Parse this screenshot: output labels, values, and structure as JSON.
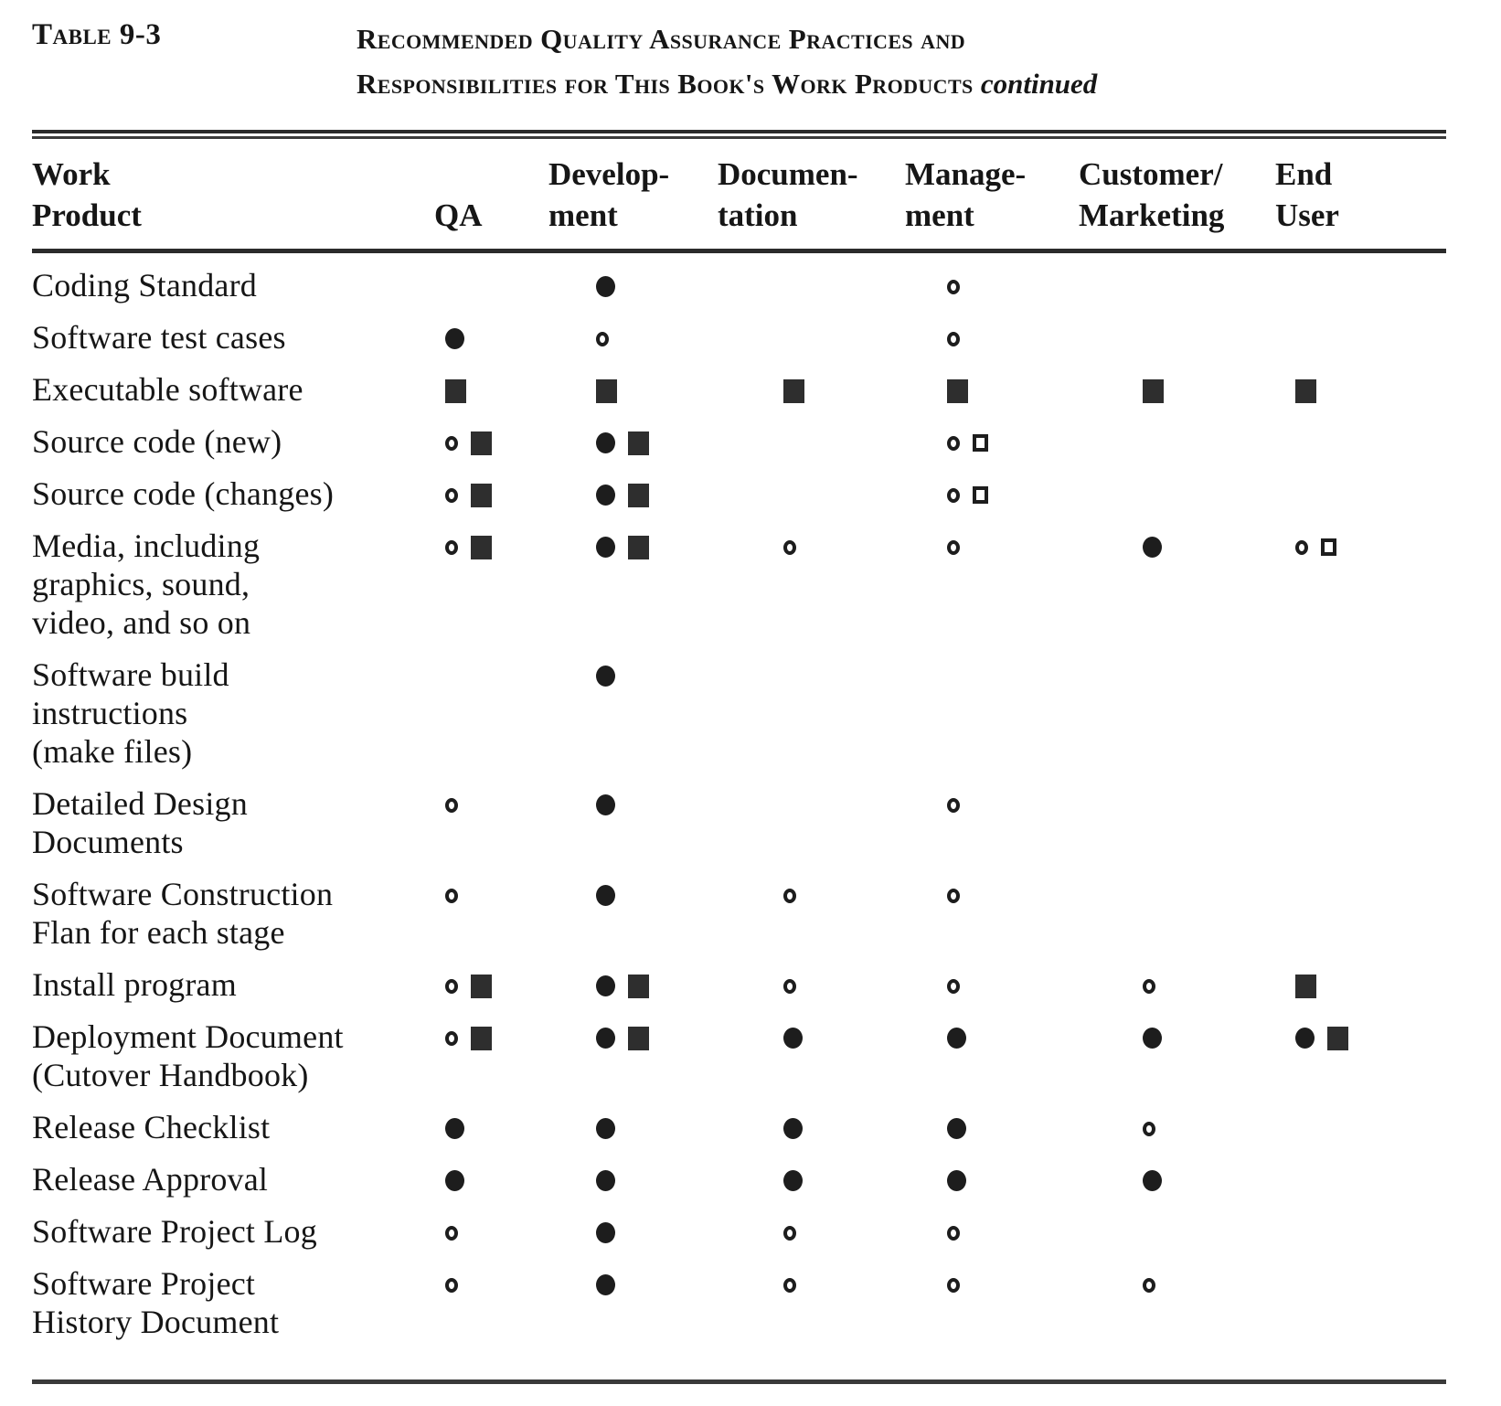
{
  "page": {
    "table_label": "Table 9-3",
    "title": {
      "line1": "Recommended Quality Assurance Practices and",
      "line2": "Responsibilities for This Book's Work Products",
      "continued": "continued"
    }
  },
  "symbols": {
    "filled-circle": "●",
    "open-circle": "○",
    "filled-square": "■",
    "open-square": "□"
  },
  "table": {
    "column_keys": [
      "qa",
      "development",
      "documentation",
      "management",
      "customer-marketing",
      "end-user"
    ],
    "headers": [
      {
        "line1": "Work",
        "line2": "Product"
      },
      {
        "line1": " ",
        "line2": "QA"
      },
      {
        "line1": "Develop-",
        "line2": "ment"
      },
      {
        "line1": "Documen-",
        "line2": "tation"
      },
      {
        "line1": "Manage-",
        "line2": "ment"
      },
      {
        "line1": "Customer/",
        "line2": "Marketing"
      },
      {
        "line1": "End",
        "line2": "User"
      }
    ],
    "rows": [
      {
        "label": "Coding Standard",
        "cells": [
          [],
          [
            "filled-circle"
          ],
          [],
          [
            "open-circle"
          ],
          [],
          []
        ]
      },
      {
        "label": "Software test cases",
        "cells": [
          [
            "filled-circle"
          ],
          [
            "open-circle"
          ],
          [],
          [
            "open-circle"
          ],
          [],
          []
        ]
      },
      {
        "label": "Executable software",
        "cells": [
          [
            "filled-square"
          ],
          [
            "filled-square"
          ],
          [
            "filled-square"
          ],
          [
            "filled-square"
          ],
          [
            "filled-square"
          ],
          [
            "filled-square"
          ]
        ]
      },
      {
        "label": "Source code (new)",
        "cells": [
          [
            "open-circle",
            "filled-square"
          ],
          [
            "filled-circle",
            "filled-square"
          ],
          [],
          [
            "open-circle",
            "open-square"
          ],
          [],
          []
        ]
      },
      {
        "label": "Source code (changes)",
        "cells": [
          [
            "open-circle",
            "filled-square"
          ],
          [
            "filled-circle",
            "filled-square"
          ],
          [],
          [
            "open-circle",
            "open-square"
          ],
          [],
          []
        ]
      },
      {
        "label": "Media, including\ngraphics, sound,\nvideo, and so on",
        "cells": [
          [
            "open-circle",
            "filled-square"
          ],
          [
            "filled-circle",
            "filled-square"
          ],
          [
            "open-circle"
          ],
          [
            "open-circle"
          ],
          [
            "filled-circle"
          ],
          [
            "open-circle",
            "open-square"
          ]
        ]
      },
      {
        "label": "Software build\ninstructions\n(make files)",
        "cells": [
          [],
          [
            "filled-circle"
          ],
          [],
          [],
          [],
          []
        ]
      },
      {
        "label": "Detailed Design\nDocuments",
        "cells": [
          [
            "open-circle"
          ],
          [
            "filled-circle"
          ],
          [],
          [
            "open-circle"
          ],
          [],
          []
        ]
      },
      {
        "label": "Software Construction\nFlan for each stage",
        "cells": [
          [
            "open-circle"
          ],
          [
            "filled-circle"
          ],
          [
            "open-circle"
          ],
          [
            "open-circle"
          ],
          [],
          []
        ]
      },
      {
        "label": "Install program",
        "cells": [
          [
            "open-circle",
            "filled-square"
          ],
          [
            "filled-circle",
            "filled-square"
          ],
          [
            "open-circle"
          ],
          [
            "open-circle"
          ],
          [
            "open-circle"
          ],
          [
            "filled-square"
          ]
        ]
      },
      {
        "label": "Deployment Document\n(Cutover Handbook)",
        "cells": [
          [
            "open-circle",
            "filled-square"
          ],
          [
            "filled-circle",
            "filled-square"
          ],
          [
            "filled-circle"
          ],
          [
            "filled-circle"
          ],
          [
            "filled-circle"
          ],
          [
            "filled-circle",
            "filled-square"
          ]
        ]
      },
      {
        "label": "Release Checklist",
        "cells": [
          [
            "filled-circle"
          ],
          [
            "filled-circle"
          ],
          [
            "filled-circle"
          ],
          [
            "filled-circle"
          ],
          [
            "open-circle"
          ],
          []
        ]
      },
      {
        "label": "Release Approval",
        "cells": [
          [
            "filled-circle"
          ],
          [
            "filled-circle"
          ],
          [
            "filled-circle"
          ],
          [
            "filled-circle"
          ],
          [
            "filled-circle"
          ],
          []
        ]
      },
      {
        "label": "Software Project Log",
        "cells": [
          [
            "open-circle"
          ],
          [
            "filled-circle"
          ],
          [
            "open-circle"
          ],
          [
            "open-circle"
          ],
          [],
          []
        ]
      },
      {
        "label": "Software Project\nHistory Document",
        "cells": [
          [
            "open-circle"
          ],
          [
            "filled-circle"
          ],
          [
            "open-circle"
          ],
          [
            "open-circle"
          ],
          [
            "open-circle"
          ],
          []
        ]
      }
    ]
  },
  "colors": {
    "ink": "#161616",
    "paper": "#ffffff"
  }
}
